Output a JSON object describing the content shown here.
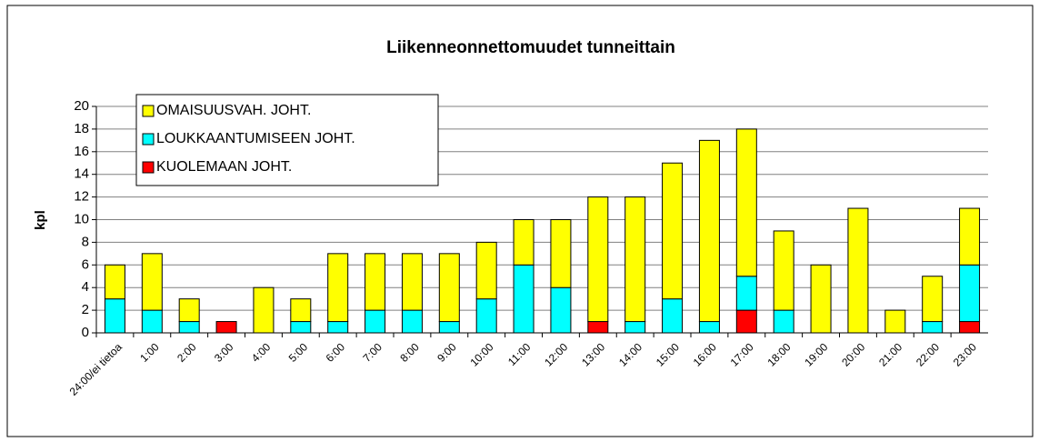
{
  "chart_data": {
    "type": "bar",
    "stacked": true,
    "title": "Liikenneonnettomuudet tunneittain",
    "y_label": "kpl",
    "categories": [
      "24:00/ei tietoa",
      "1:00",
      "2:00",
      "3:00",
      "4:00",
      "5:00",
      "6:00",
      "7:00",
      "8:00",
      "9:00",
      "10:00",
      "11:00",
      "12:00",
      "13:00",
      "14:00",
      "15:00",
      "16:00",
      "17:00",
      "18:00",
      "19:00",
      "20:00",
      "21:00",
      "22:00",
      "23:00"
    ],
    "series": [
      {
        "name": "OMAISUUSVAH. JOHT.",
        "color": "#ffff00",
        "values": [
          3,
          5,
          2,
          0,
          4,
          2,
          6,
          5,
          5,
          6,
          5,
          4,
          6,
          11,
          11,
          12,
          16,
          13,
          7,
          6,
          11,
          2,
          4,
          5
        ]
      },
      {
        "name": "LOUKKAANTUMISEEN JOHT.",
        "color": "#00ffff",
        "values": [
          3,
          2,
          1,
          0,
          0,
          1,
          1,
          2,
          2,
          1,
          3,
          6,
          4,
          0,
          1,
          3,
          1,
          3,
          2,
          0,
          0,
          0,
          1,
          5
        ]
      },
      {
        "name": "KUOLEMAAN JOHT.",
        "color": "#ff0000",
        "values": [
          0,
          0,
          0,
          1,
          0,
          0,
          0,
          0,
          0,
          0,
          0,
          0,
          0,
          1,
          0,
          0,
          0,
          2,
          0,
          0,
          0,
          0,
          0,
          1
        ]
      }
    ],
    "ylim": [
      0,
      20
    ],
    "yticks": [
      0,
      2,
      4,
      6,
      8,
      10,
      12,
      14,
      16,
      18,
      20
    ],
    "grid": true,
    "legend": "top-left"
  }
}
